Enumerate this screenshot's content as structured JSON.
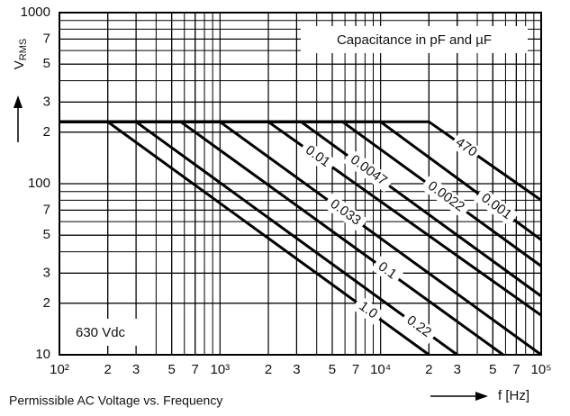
{
  "chart_data": {
    "type": "line",
    "title": "Permissible AC Voltage vs. Frequency",
    "xlabel": "f [Hz]",
    "ylabel": "V",
    "ylabel_subscript": "RMS",
    "annotations": [
      "Capacitance in pF and µF",
      "630 Vdc"
    ],
    "xscale": "log",
    "yscale": "log",
    "grid": true,
    "color": "#000000",
    "xlim": [
      100,
      100000
    ],
    "ylim": [
      10,
      1000
    ],
    "xticks": [
      {
        "value": 100,
        "label": "10²"
      },
      {
        "value": 200,
        "label": "2"
      },
      {
        "value": 300,
        "label": "3"
      },
      {
        "value": 500,
        "label": "5"
      },
      {
        "value": 700,
        "label": "7"
      },
      {
        "value": 1000,
        "label": "10³"
      },
      {
        "value": 2000,
        "label": "2"
      },
      {
        "value": 3000,
        "label": "3"
      },
      {
        "value": 5000,
        "label": "5"
      },
      {
        "value": 7000,
        "label": "7"
      },
      {
        "value": 10000,
        "label": "10⁴"
      },
      {
        "value": 20000,
        "label": "2"
      },
      {
        "value": 30000,
        "label": "3"
      },
      {
        "value": 50000,
        "label": "5"
      },
      {
        "value": 70000,
        "label": "7"
      },
      {
        "value": 100000,
        "label": "10⁵"
      }
    ],
    "yticks": [
      1000,
      {
        "value": 700,
        "label": "7"
      },
      {
        "value": 500,
        "label": "5"
      },
      {
        "value": 300,
        "label": "3"
      },
      {
        "value": 200,
        "label": "2"
      },
      100,
      {
        "value": 70,
        "label": "7"
      },
      {
        "value": 50,
        "label": "5"
      },
      {
        "value": 30,
        "label": "3"
      },
      {
        "value": 20,
        "label": "2"
      },
      10
    ],
    "series": [
      {
        "name": "470",
        "x": [
          100,
          20000,
          100000
        ],
        "values": [
          230,
          230,
          80
        ]
      },
      {
        "name": "0.001",
        "x": [
          100,
          10000,
          100000
        ],
        "values": [
          230,
          230,
          47
        ]
      },
      {
        "name": "0.0022",
        "x": [
          100,
          5800,
          100000
        ],
        "values": [
          230,
          230,
          33
        ]
      },
      {
        "name": "0.0047",
        "x": [
          100,
          3200,
          100000
        ],
        "values": [
          230,
          230,
          22
        ]
      },
      {
        "name": "0.01",
        "x": [
          100,
          2000,
          100000
        ],
        "values": [
          230,
          230,
          17
        ]
      },
      {
        "name": "0.033",
        "x": [
          100,
          1000,
          100000
        ],
        "values": [
          230,
          230,
          10
        ]
      },
      {
        "name": "0.1",
        "x": [
          100,
          570,
          58000
        ],
        "values": [
          230,
          230,
          10
        ]
      },
      {
        "name": "0.22",
        "x": [
          100,
          300,
          30000
        ],
        "values": [
          230,
          230,
          10
        ]
      },
      {
        "name": "1.0",
        "x": [
          100,
          200,
          20000
        ],
        "values": [
          230,
          230,
          10
        ]
      }
    ]
  }
}
